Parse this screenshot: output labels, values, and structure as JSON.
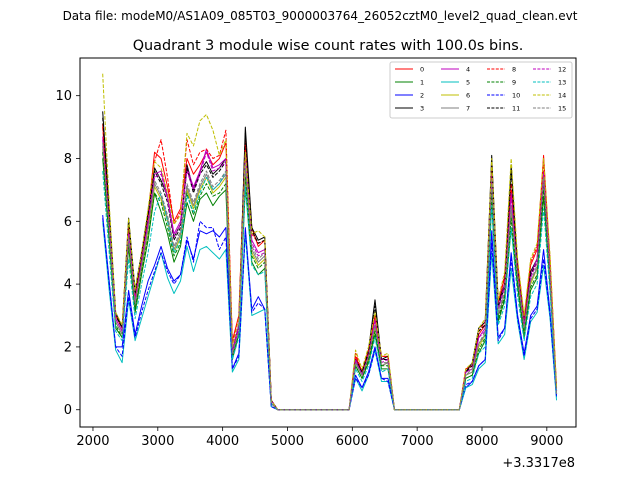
{
  "suptitle": "Data file: modeM0/AS1A09_085T03_9000003764_26052cztM0_level2_quad_clean.evt",
  "chart_data": {
    "type": "line",
    "title": "Quadrant 3 module wise count rates with 100.0s bins.",
    "xlabel": "",
    "ylabel": "",
    "x_offset_label": "+3.3317e8",
    "xlim": [
      1800,
      9450
    ],
    "ylim": [
      -0.55,
      11.2
    ],
    "x_ticks": [
      2000,
      3000,
      4000,
      5000,
      6000,
      7000,
      8000,
      9000
    ],
    "x_tick_labels": [
      "2000",
      "3000",
      "4000",
      "5000",
      "6000",
      "7000",
      "8000",
      "9000"
    ],
    "y_ticks": [
      0,
      2,
      4,
      6,
      8,
      10
    ],
    "y_tick_labels": [
      "0",
      "2",
      "4",
      "6",
      "8",
      "10"
    ],
    "legend_position": "top-right",
    "x": [
      2150,
      2250,
      2350,
      2450,
      2550,
      2650,
      2750,
      2850,
      2950,
      3050,
      3150,
      3250,
      3350,
      3450,
      3550,
      3650,
      3750,
      3850,
      3950,
      4050,
      4150,
      4250,
      4350,
      4450,
      4550,
      4650,
      4750,
      4850,
      5950,
      6050,
      6150,
      6250,
      6350,
      6450,
      6550,
      6650,
      7650,
      7750,
      7850,
      7950,
      8050,
      8150,
      8250,
      8350,
      8450,
      8550,
      8650,
      8750,
      8850,
      8950,
      9050,
      9150
    ],
    "series": [
      {
        "name": "0",
        "color": "#ff0000",
        "dash": "solid",
        "values": [
          9.1,
          6.1,
          3.0,
          2.6,
          5.9,
          3.6,
          4.9,
          6.2,
          8.2,
          8.0,
          7.1,
          6.0,
          6.4,
          8.0,
          7.5,
          7.8,
          8.2,
          7.8,
          8.0,
          8.5,
          2.2,
          3.0,
          8.6,
          5.8,
          5.2,
          5.4,
          0.3,
          0.0,
          0.0,
          1.7,
          1.2,
          1.9,
          3.0,
          1.7,
          1.7,
          0.0,
          0.0,
          1.3,
          1.4,
          2.4,
          2.7,
          7.9,
          3.4,
          4.2,
          7.0,
          4.7,
          2.9,
          4.6,
          5.1,
          8.1,
          4.7,
          0.7
        ]
      },
      {
        "name": "1",
        "color": "#008000",
        "dash": "solid",
        "values": [
          8.0,
          5.4,
          2.6,
          2.3,
          5.2,
          3.1,
          4.3,
          5.4,
          6.9,
          6.3,
          5.6,
          4.7,
          5.2,
          6.6,
          6.0,
          6.7,
          6.9,
          6.5,
          6.8,
          7.0,
          1.6,
          2.4,
          7.1,
          4.7,
          4.3,
          4.5,
          0.2,
          0.0,
          0.0,
          1.4,
          1.0,
          1.5,
          2.4,
          1.3,
          1.3,
          0.0,
          0.0,
          1.0,
          1.1,
          1.8,
          2.2,
          6.6,
          2.8,
          3.5,
          5.8,
          3.9,
          2.3,
          3.8,
          4.2,
          6.8,
          3.9,
          0.5
        ]
      },
      {
        "name": "2",
        "color": "#0000ff",
        "dash": "solid",
        "values": [
          6.2,
          4.1,
          2.0,
          2.0,
          3.8,
          2.4,
          3.3,
          4.1,
          4.6,
          5.2,
          4.5,
          4.1,
          4.3,
          5.4,
          4.8,
          5.7,
          5.6,
          5.7,
          5.5,
          5.8,
          1.3,
          1.8,
          5.8,
          3.2,
          3.6,
          3.2,
          0.1,
          0.0,
          0.0,
          1.1,
          0.7,
          1.2,
          2.0,
          1.0,
          1.0,
          0.0,
          0.0,
          0.7,
          0.9,
          1.4,
          1.6,
          5.7,
          2.3,
          2.6,
          5.0,
          3.0,
          1.8,
          3.0,
          3.3,
          5.1,
          3.1,
          0.4
        ]
      },
      {
        "name": "3",
        "color": "#000000",
        "dash": "solid",
        "values": [
          9.5,
          6.4,
          3.1,
          2.6,
          6.1,
          3.8,
          5.0,
          6.3,
          7.7,
          7.3,
          6.8,
          5.5,
          5.9,
          7.8,
          7.0,
          7.6,
          7.9,
          7.5,
          7.7,
          8.0,
          1.9,
          2.7,
          9.0,
          5.8,
          5.4,
          5.5,
          0.3,
          0.0,
          0.0,
          1.6,
          1.2,
          1.9,
          3.5,
          1.6,
          1.7,
          0.0,
          0.0,
          1.2,
          1.5,
          2.6,
          2.8,
          8.1,
          3.4,
          4.0,
          7.8,
          4.5,
          2.8,
          4.4,
          4.8,
          7.5,
          4.4,
          0.6
        ]
      },
      {
        "name": "4",
        "color": "#bf00bf",
        "dash": "solid",
        "values": [
          8.7,
          6.0,
          2.9,
          2.5,
          5.7,
          3.5,
          4.8,
          6.0,
          7.5,
          7.6,
          6.8,
          5.6,
          6.0,
          7.7,
          7.1,
          7.6,
          8.3,
          7.7,
          7.8,
          8.0,
          1.9,
          2.7,
          8.3,
          5.4,
          5.0,
          5.1,
          0.3,
          0.0,
          0.0,
          1.6,
          1.1,
          1.8,
          2.9,
          1.6,
          1.6,
          0.0,
          0.0,
          1.2,
          1.3,
          2.3,
          2.6,
          7.6,
          3.2,
          4.0,
          6.9,
          4.4,
          2.7,
          4.3,
          4.8,
          7.6,
          4.5,
          0.6
        ]
      },
      {
        "name": "5",
        "color": "#00bfbf",
        "dash": "solid",
        "values": [
          6.0,
          3.8,
          1.9,
          1.5,
          3.5,
          2.2,
          2.9,
          3.6,
          4.3,
          5.0,
          4.2,
          3.7,
          4.1,
          5.2,
          4.4,
          5.1,
          5.2,
          5.0,
          4.8,
          5.1,
          1.2,
          1.6,
          5.6,
          3.0,
          3.1,
          3.2,
          0.1,
          0.0,
          0.0,
          1.0,
          0.6,
          1.1,
          1.9,
          0.9,
          0.9,
          0.0,
          0.0,
          0.7,
          0.8,
          1.3,
          1.5,
          5.0,
          2.1,
          2.4,
          4.5,
          2.8,
          1.6,
          2.8,
          3.1,
          4.6,
          2.9,
          0.3
        ]
      },
      {
        "name": "6",
        "color": "#bfbf00",
        "dash": "solid",
        "values": [
          8.3,
          5.6,
          2.8,
          2.4,
          5.4,
          3.3,
          4.5,
          5.7,
          7.1,
          6.7,
          6.0,
          5.0,
          5.5,
          7.0,
          6.4,
          7.0,
          7.4,
          6.9,
          7.1,
          7.4,
          1.7,
          2.5,
          7.6,
          5.0,
          4.6,
          4.8,
          0.2,
          0.0,
          0.0,
          1.5,
          1.1,
          1.6,
          2.6,
          1.4,
          1.5,
          0.0,
          0.0,
          1.1,
          1.2,
          2.0,
          2.4,
          7.1,
          3.0,
          3.7,
          6.3,
          4.2,
          2.5,
          4.0,
          4.5,
          7.2,
          4.1,
          0.5
        ]
      },
      {
        "name": "7",
        "color": "#7f7f7f",
        "dash": "solid",
        "values": [
          8.4,
          5.7,
          2.8,
          2.4,
          5.5,
          3.3,
          4.6,
          5.8,
          7.2,
          6.8,
          6.1,
          5.1,
          5.6,
          7.1,
          6.5,
          7.1,
          7.5,
          7.0,
          7.2,
          7.5,
          1.7,
          2.5,
          7.7,
          5.1,
          4.7,
          4.9,
          0.2,
          0.0,
          0.0,
          1.5,
          1.1,
          1.7,
          2.7,
          1.4,
          1.5,
          0.0,
          0.0,
          1.1,
          1.2,
          2.1,
          2.4,
          7.2,
          3.0,
          3.7,
          6.4,
          4.2,
          2.5,
          4.1,
          4.5,
          7.3,
          4.2,
          0.5
        ]
      },
      {
        "name": "8",
        "color": "#ff0000",
        "dash": "dashed",
        "values": [
          9.0,
          6.2,
          3.0,
          2.6,
          5.9,
          3.6,
          4.9,
          6.2,
          7.9,
          8.6,
          7.4,
          5.9,
          6.3,
          8.6,
          7.8,
          8.2,
          8.3,
          8.0,
          8.1,
          8.9,
          2.1,
          3.0,
          8.5,
          5.6,
          5.3,
          5.4,
          0.3,
          0.0,
          0.0,
          1.8,
          1.2,
          1.9,
          3.0,
          1.7,
          1.7,
          0.0,
          0.0,
          1.3,
          1.4,
          2.5,
          2.8,
          7.8,
          3.4,
          4.3,
          7.2,
          4.6,
          2.9,
          4.7,
          5.2,
          7.9,
          4.8,
          0.7
        ]
      },
      {
        "name": "9",
        "color": "#008000",
        "dash": "dashed",
        "values": [
          8.2,
          5.5,
          2.7,
          2.3,
          5.3,
          3.2,
          4.4,
          5.5,
          6.9,
          6.6,
          5.8,
          4.9,
          5.3,
          6.9,
          6.2,
          6.8,
          7.2,
          6.8,
          6.9,
          7.2,
          1.7,
          2.4,
          7.4,
          4.9,
          4.5,
          4.7,
          0.2,
          0.0,
          0.0,
          1.4,
          1.0,
          1.6,
          2.5,
          1.4,
          1.4,
          0.0,
          0.0,
          1.0,
          1.1,
          1.9,
          2.3,
          6.9,
          2.9,
          3.6,
          6.1,
          4.0,
          2.4,
          3.9,
          4.3,
          7.0,
          4.0,
          0.5
        ]
      },
      {
        "name": "10",
        "color": "#0000ff",
        "dash": "dashed",
        "values": [
          6.1,
          4.0,
          2.0,
          1.7,
          3.6,
          2.3,
          3.1,
          3.8,
          4.4,
          5.0,
          4.4,
          4.0,
          4.3,
          5.5,
          4.7,
          6.0,
          5.8,
          5.8,
          5.1,
          5.5,
          1.3,
          1.7,
          5.7,
          3.1,
          3.4,
          3.2,
          0.1,
          0.0,
          0.0,
          1.0,
          0.7,
          1.1,
          1.9,
          1.0,
          0.9,
          0.0,
          0.0,
          0.8,
          0.9,
          1.4,
          1.6,
          5.3,
          2.2,
          2.6,
          4.8,
          2.9,
          1.7,
          2.9,
          3.2,
          4.8,
          3.0,
          0.4
        ]
      },
      {
        "name": "11",
        "color": "#000000",
        "dash": "dashed",
        "values": [
          9.3,
          6.3,
          3.0,
          2.6,
          6.0,
          3.7,
          4.9,
          6.2,
          7.6,
          7.2,
          6.6,
          5.4,
          5.8,
          7.7,
          6.9,
          7.5,
          7.8,
          7.4,
          7.6,
          7.9,
          1.8,
          2.6,
          8.8,
          5.7,
          5.3,
          5.4,
          0.3,
          0.0,
          0.0,
          1.6,
          1.2,
          1.8,
          3.3,
          1.6,
          1.6,
          0.0,
          0.0,
          1.2,
          1.4,
          2.5,
          2.7,
          7.9,
          3.3,
          3.9,
          7.6,
          4.4,
          2.7,
          4.3,
          4.7,
          7.4,
          4.3,
          0.6
        ]
      },
      {
        "name": "12",
        "color": "#bf00bf",
        "dash": "dashed",
        "values": [
          8.6,
          5.9,
          2.9,
          2.5,
          5.6,
          3.5,
          4.7,
          5.9,
          7.4,
          7.5,
          6.7,
          5.5,
          5.9,
          7.6,
          7.0,
          7.5,
          8.2,
          7.6,
          7.7,
          7.9,
          1.8,
          2.6,
          8.2,
          5.3,
          4.9,
          5.0,
          0.3,
          0.0,
          0.0,
          1.6,
          1.1,
          1.7,
          2.8,
          1.5,
          1.6,
          0.0,
          0.0,
          1.2,
          1.3,
          2.3,
          2.5,
          7.5,
          3.2,
          3.9,
          6.8,
          4.3,
          2.7,
          4.2,
          4.7,
          7.5,
          4.4,
          0.6
        ]
      },
      {
        "name": "13",
        "color": "#00bfbf",
        "dash": "dashed",
        "values": [
          7.6,
          5.0,
          2.5,
          2.2,
          4.8,
          2.9,
          4.0,
          5.0,
          6.3,
          6.9,
          6.0,
          5.0,
          5.4,
          6.8,
          6.3,
          6.9,
          7.4,
          7.0,
          7.2,
          7.6,
          1.6,
          2.3,
          7.1,
          4.6,
          4.3,
          4.4,
          0.2,
          0.0,
          0.0,
          1.3,
          0.9,
          1.4,
          2.3,
          1.2,
          1.3,
          0.0,
          0.0,
          0.9,
          1.0,
          1.8,
          2.0,
          6.5,
          2.7,
          3.3,
          5.8,
          3.6,
          2.2,
          3.6,
          4.0,
          6.4,
          3.7,
          0.5
        ]
      },
      {
        "name": "14",
        "color": "#bfbf00",
        "dash": "dashed",
        "values": [
          10.7,
          6.6,
          3.1,
          2.7,
          6.1,
          3.8,
          5.0,
          6.4,
          7.9,
          7.7,
          6.9,
          5.9,
          6.2,
          8.8,
          8.4,
          9.2,
          9.4,
          8.9,
          8.1,
          8.6,
          2.0,
          2.9,
          8.2,
          5.6,
          5.7,
          5.5,
          0.3,
          0.0,
          0.0,
          1.9,
          1.3,
          2.0,
          3.1,
          1.7,
          1.8,
          0.0,
          0.0,
          1.3,
          1.5,
          2.6,
          2.9,
          8.0,
          3.5,
          4.4,
          8.0,
          4.8,
          3.0,
          4.8,
          5.3,
          8.0,
          4.9,
          0.7
        ]
      },
      {
        "name": "15",
        "color": "#7f7f7f",
        "dash": "dashed",
        "values": [
          8.5,
          5.8,
          2.8,
          2.4,
          5.5,
          3.4,
          4.6,
          5.8,
          7.3,
          6.9,
          6.2,
          5.2,
          5.7,
          7.2,
          6.6,
          7.2,
          7.6,
          7.1,
          7.3,
          7.6,
          1.8,
          2.5,
          7.8,
          5.2,
          4.8,
          5.0,
          0.2,
          0.0,
          0.0,
          1.5,
          1.1,
          1.7,
          2.7,
          1.5,
          1.5,
          0.0,
          0.0,
          1.1,
          1.3,
          2.1,
          2.5,
          7.3,
          3.1,
          3.8,
          6.5,
          4.3,
          2.6,
          4.1,
          4.6,
          7.4,
          4.2,
          0.5
        ]
      }
    ]
  }
}
